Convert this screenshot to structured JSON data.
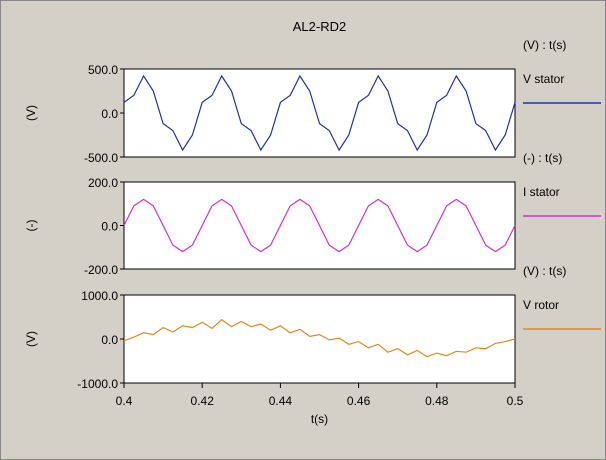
{
  "chart_data": [
    {
      "type": "line",
      "title": "AL2-RD2",
      "ylabel": "(V)",
      "legend_unit": "(V) : t(s)",
      "ylim": [
        -500,
        500
      ],
      "yticks": [
        "500.0",
        "0.0",
        "-500.0"
      ],
      "ytick_values": [
        500,
        0,
        -500
      ],
      "grid": false,
      "series": [
        {
          "name": "V stator",
          "color": "#2233aa",
          "x": [
            0.4,
            0.4025,
            0.405,
            0.4075,
            0.41,
            0.4125,
            0.415,
            0.4175,
            0.42,
            0.4225,
            0.425,
            0.4275,
            0.43,
            0.4325,
            0.435,
            0.4375,
            0.44,
            0.4425,
            0.445,
            0.4475,
            0.45,
            0.4525,
            0.455,
            0.4575,
            0.46,
            0.4625,
            0.465,
            0.4675,
            0.47,
            0.4725,
            0.475,
            0.4775,
            0.48,
            0.4825,
            0.485,
            0.4875,
            0.49,
            0.4925,
            0.495,
            0.4975,
            0.5
          ],
          "y": [
            120,
            200,
            420,
            250,
            -120,
            -200,
            -420,
            -250,
            120,
            200,
            420,
            250,
            -120,
            -200,
            -420,
            -250,
            120,
            200,
            420,
            250,
            -120,
            -200,
            -420,
            -250,
            120,
            200,
            420,
            250,
            -120,
            -200,
            -420,
            -250,
            120,
            200,
            420,
            250,
            -120,
            -200,
            -420,
            -250,
            120
          ]
        }
      ]
    },
    {
      "type": "line",
      "ylabel": "(-)",
      "legend_unit": "(-) : t(s)",
      "ylim": [
        -200,
        200
      ],
      "yticks": [
        "200.0",
        "0.0",
        "-200.0"
      ],
      "ytick_values": [
        200,
        0,
        -200
      ],
      "grid": false,
      "series": [
        {
          "name": "I stator",
          "color": "#cc33cc",
          "x": [
            0.4,
            0.4025,
            0.405,
            0.4075,
            0.41,
            0.4125,
            0.415,
            0.4175,
            0.42,
            0.4225,
            0.425,
            0.4275,
            0.43,
            0.4325,
            0.435,
            0.4375,
            0.44,
            0.4425,
            0.445,
            0.4475,
            0.45,
            0.4525,
            0.455,
            0.4575,
            0.46,
            0.4625,
            0.465,
            0.4675,
            0.47,
            0.4725,
            0.475,
            0.4775,
            0.48,
            0.4825,
            0.485,
            0.4875,
            0.49,
            0.4925,
            0.495,
            0.4975,
            0.5
          ],
          "y": [
            0,
            90,
            120,
            90,
            0,
            -90,
            -120,
            -90,
            0,
            90,
            120,
            90,
            0,
            -90,
            -120,
            -90,
            0,
            90,
            120,
            90,
            0,
            -90,
            -120,
            -90,
            0,
            90,
            120,
            90,
            0,
            -90,
            -120,
            -90,
            0,
            90,
            120,
            90,
            0,
            -90,
            -120,
            -90,
            0
          ]
        }
      ]
    },
    {
      "type": "line",
      "ylabel": "(V)",
      "legend_unit": "(V) : t(s)",
      "xlabel": "t(s)",
      "ylim": [
        -1000,
        1000
      ],
      "yticks": [
        "1000.0",
        "0.0",
        "-1000.0"
      ],
      "ytick_values": [
        1000,
        0,
        -1000
      ],
      "xlim": [
        0.4,
        0.5
      ],
      "xticks": [
        "0.4",
        "0.42",
        "0.44",
        "0.46",
        "0.48",
        "0.5"
      ],
      "xtick_values": [
        0.4,
        0.42,
        0.44,
        0.46,
        0.48,
        0.5
      ],
      "grid": false,
      "series": [
        {
          "name": "V rotor",
          "color": "#e08a1e",
          "x": [
            0.4,
            0.4025,
            0.405,
            0.4075,
            0.41,
            0.4125,
            0.415,
            0.4175,
            0.42,
            0.4225,
            0.425,
            0.4275,
            0.43,
            0.4325,
            0.435,
            0.4375,
            0.44,
            0.4425,
            0.445,
            0.4475,
            0.45,
            0.4525,
            0.455,
            0.4575,
            0.46,
            0.4625,
            0.465,
            0.4675,
            0.47,
            0.4725,
            0.475,
            0.4775,
            0.48,
            0.4825,
            0.485,
            0.4875,
            0.49,
            0.4925,
            0.495,
            0.4975,
            0.5
          ],
          "y": [
            -40,
            40,
            140,
            100,
            260,
            160,
            300,
            260,
            380,
            240,
            440,
            280,
            400,
            280,
            340,
            200,
            300,
            140,
            220,
            60,
            100,
            -20,
            20,
            -120,
            -60,
            -200,
            -120,
            -300,
            -220,
            -360,
            -260,
            -400,
            -320,
            -380,
            -280,
            -300,
            -200,
            -220,
            -100,
            -60,
            0
          ]
        }
      ]
    }
  ]
}
